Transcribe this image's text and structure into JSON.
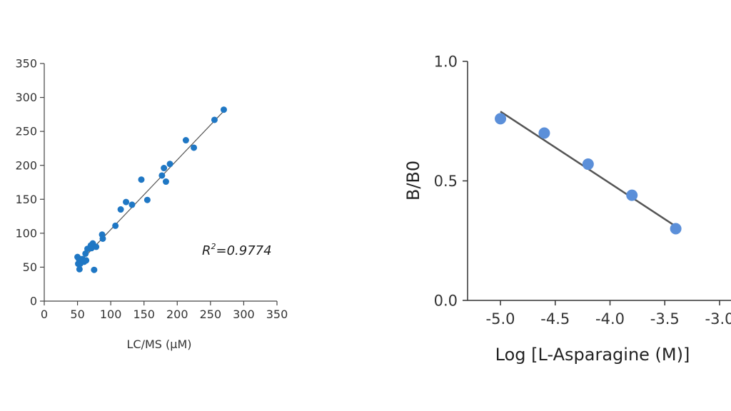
{
  "chart_data": [
    {
      "type": "scatter",
      "title": "",
      "xlabel": "LC/MS (µM)",
      "ylabel": "",
      "xlim": [
        0,
        350
      ],
      "ylim": [
        0,
        350
      ],
      "xticks": [
        0,
        50,
        100,
        150,
        200,
        250,
        300,
        350
      ],
      "yticks": [
        0,
        50,
        100,
        150,
        200,
        250,
        300,
        350
      ],
      "tick_labels_x": [
        "0",
        "50",
        "100",
        "150",
        "200",
        "250",
        "300",
        "350"
      ],
      "tick_labels_y": [
        "0",
        "50",
        "100",
        "150",
        "200",
        "250",
        "300",
        "350"
      ],
      "grid": false,
      "legend": "none",
      "annotation": {
        "symbol": "R",
        "superscript": "2",
        "text": "=0.9774"
      },
      "fit_line": {
        "x": [
          48,
          272
        ],
        "y": [
          52,
          282
        ]
      },
      "point_color": "#1f77c4",
      "line_color": "#555555",
      "points": [
        {
          "x": 50,
          "y": 65
        },
        {
          "x": 51,
          "y": 55
        },
        {
          "x": 52,
          "y": 62
        },
        {
          "x": 53,
          "y": 47
        },
        {
          "x": 54,
          "y": 55
        },
        {
          "x": 57,
          "y": 62
        },
        {
          "x": 60,
          "y": 58
        },
        {
          "x": 62,
          "y": 70
        },
        {
          "x": 63,
          "y": 60
        },
        {
          "x": 65,
          "y": 77
        },
        {
          "x": 70,
          "y": 82
        },
        {
          "x": 71,
          "y": 78
        },
        {
          "x": 73,
          "y": 85
        },
        {
          "x": 75,
          "y": 46
        },
        {
          "x": 78,
          "y": 80
        },
        {
          "x": 87,
          "y": 98
        },
        {
          "x": 88,
          "y": 92
        },
        {
          "x": 107,
          "y": 111
        },
        {
          "x": 115,
          "y": 135
        },
        {
          "x": 123,
          "y": 146
        },
        {
          "x": 132,
          "y": 142
        },
        {
          "x": 146,
          "y": 179
        },
        {
          "x": 155,
          "y": 149
        },
        {
          "x": 177,
          "y": 185
        },
        {
          "x": 180,
          "y": 196
        },
        {
          "x": 183,
          "y": 176
        },
        {
          "x": 189,
          "y": 202
        },
        {
          "x": 213,
          "y": 237
        },
        {
          "x": 225,
          "y": 226
        },
        {
          "x": 256,
          "y": 267
        },
        {
          "x": 270,
          "y": 282
        }
      ]
    },
    {
      "type": "scatter",
      "title": "",
      "xlabel": "Log [L-Asparagine (M)]",
      "ylabel": "B/B0",
      "xlim": [
        -5.3,
        -3.0
      ],
      "ylim": [
        0.0,
        1.0
      ],
      "xticks": [
        -5.0,
        -4.5,
        -4.0,
        -3.5,
        -3.0
      ],
      "yticks": [
        0.0,
        0.5,
        1.0
      ],
      "tick_labels_x": [
        "-5.0",
        "-4.5",
        "-4.0",
        "-3.5",
        "-3.0"
      ],
      "tick_labels_y": [
        "0.0",
        "0.5",
        "1.0"
      ],
      "grid": false,
      "legend": "none",
      "fit_line": {
        "x": [
          -5.0,
          -3.4
        ],
        "y": [
          0.79,
          0.31
        ]
      },
      "point_color": "#5b8fd9",
      "line_color": "#555555",
      "points": [
        {
          "x": -5.0,
          "y": 0.76
        },
        {
          "x": -4.6,
          "y": 0.7
        },
        {
          "x": -4.2,
          "y": 0.57
        },
        {
          "x": -3.8,
          "y": 0.44
        },
        {
          "x": -3.4,
          "y": 0.3
        }
      ]
    }
  ]
}
